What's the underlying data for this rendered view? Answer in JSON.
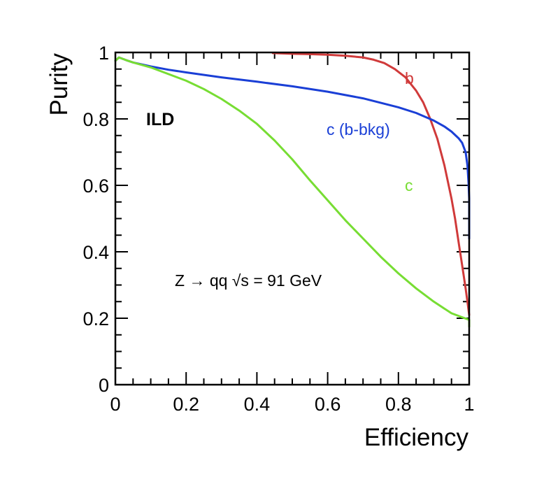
{
  "chart_data": {
    "type": "line",
    "xlabel": "Efficiency",
    "ylabel": "Purity",
    "xlim": [
      0,
      1
    ],
    "ylim": [
      0,
      1
    ],
    "x_ticks": [
      {
        "value": 0,
        "label": "0"
      },
      {
        "value": 0.2,
        "label": "0.2"
      },
      {
        "value": 0.4,
        "label": "0.4"
      },
      {
        "value": 0.6,
        "label": "0.6"
      },
      {
        "value": 0.8,
        "label": "0.8"
      },
      {
        "value": 1,
        "label": "1"
      }
    ],
    "y_ticks": [
      {
        "value": 0,
        "label": "0"
      },
      {
        "value": 0.2,
        "label": "0.2"
      },
      {
        "value": 0.4,
        "label": "0.4"
      },
      {
        "value": 0.6,
        "label": "0.6"
      },
      {
        "value": 0.8,
        "label": "0.8"
      },
      {
        "value": 1,
        "label": "1"
      }
    ],
    "grid": false,
    "legend": "none",
    "series": [
      {
        "name": "b",
        "color": "#d03a3a",
        "x": [
          0.445,
          0.5,
          0.55,
          0.6,
          0.65,
          0.7,
          0.73,
          0.76,
          0.79,
          0.82,
          0.85,
          0.87,
          0.89,
          0.91,
          0.93,
          0.95,
          0.96,
          0.97,
          0.98,
          0.99,
          0.995,
          1.0
        ],
        "y": [
          0.998,
          0.996,
          0.995,
          0.993,
          0.99,
          0.985,
          0.978,
          0.968,
          0.95,
          0.925,
          0.885,
          0.85,
          0.8,
          0.74,
          0.66,
          0.56,
          0.5,
          0.43,
          0.36,
          0.29,
          0.25,
          0.21
        ]
      },
      {
        "name": "c (b-bkg)",
        "color": "#1a3fd6",
        "x": [
          0.0,
          0.01,
          0.03,
          0.05,
          0.1,
          0.15,
          0.2,
          0.3,
          0.4,
          0.5,
          0.6,
          0.7,
          0.8,
          0.85,
          0.9,
          0.93,
          0.95,
          0.97,
          0.98,
          0.99,
          0.995,
          0.998,
          1.0,
          1.0
        ],
        "y": [
          0.975,
          0.985,
          0.977,
          0.97,
          0.958,
          0.948,
          0.94,
          0.925,
          0.912,
          0.898,
          0.882,
          0.862,
          0.835,
          0.818,
          0.795,
          0.777,
          0.762,
          0.742,
          0.728,
          0.7,
          0.66,
          0.61,
          0.56,
          0.44
        ]
      },
      {
        "name": "c",
        "color": "#77dd33",
        "x": [
          0.0,
          0.01,
          0.03,
          0.05,
          0.1,
          0.15,
          0.2,
          0.25,
          0.3,
          0.35,
          0.4,
          0.45,
          0.5,
          0.55,
          0.6,
          0.65,
          0.7,
          0.75,
          0.8,
          0.85,
          0.9,
          0.95,
          1.0,
          1.0
        ],
        "y": [
          0.975,
          0.985,
          0.977,
          0.97,
          0.955,
          0.935,
          0.915,
          0.89,
          0.86,
          0.825,
          0.785,
          0.735,
          0.678,
          0.615,
          0.555,
          0.495,
          0.44,
          0.385,
          0.335,
          0.29,
          0.25,
          0.215,
          0.195,
          0.175
        ]
      }
    ],
    "annotations": [
      {
        "id": "ild",
        "text": "ILD"
      },
      {
        "id": "process",
        "text": "Z → qq  √s = 91 GeV"
      }
    ],
    "series_labels": [
      {
        "series": "b",
        "text": "b"
      },
      {
        "series": "c (b-bkg)",
        "text": "c (b-bkg)"
      },
      {
        "series": "c",
        "text": "c"
      }
    ]
  }
}
